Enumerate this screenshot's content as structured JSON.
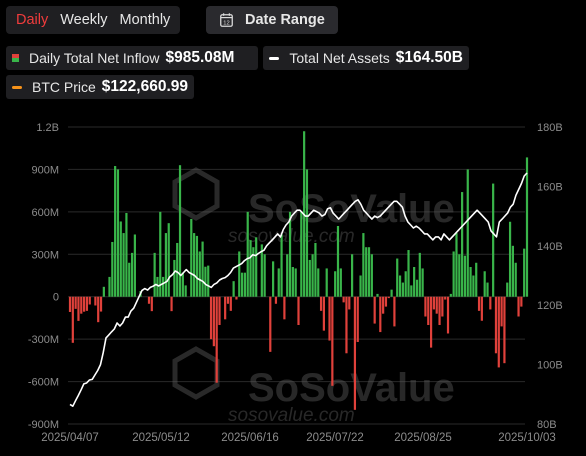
{
  "toolbar": {
    "tabs": [
      {
        "label": "Daily",
        "active": true
      },
      {
        "label": "Weekly",
        "active": false
      },
      {
        "label": "Monthly",
        "active": false
      }
    ],
    "date_range_label": "Date Range",
    "calendar_icon_text": "12"
  },
  "legend": {
    "inflow": {
      "label": "Daily Total Net Inflow",
      "value": "$985.08M"
    },
    "assets": {
      "label": "Total Net Assets",
      "value": "$164.50B"
    },
    "btc": {
      "label": "BTC Price",
      "value": "$122,660.99"
    }
  },
  "watermark": {
    "brand": "SoSoValue",
    "url": "sosovalue.com"
  },
  "colors": {
    "active_tab": "#f03c3c",
    "inflow_positive": "#39b54a",
    "inflow_negative": "#e0413b",
    "assets_line": "#ffffff",
    "btc_line": "#f7931a",
    "grid": "#2a2a2a",
    "axis_text": "#8c8c8c"
  },
  "chart_data": {
    "type": "bar",
    "x_tick_labels": [
      "2025/04/07",
      "2025/05/12",
      "2025/06/16",
      "2025/07/22",
      "2025/08/25",
      "2025/10/03"
    ],
    "y_left": {
      "ylim": [
        -900,
        1200
      ],
      "unit": "million USD",
      "tick_labels": [
        "1.2B",
        "900M",
        "600M",
        "300M",
        "0",
        "-300M",
        "-600M",
        "-900M"
      ]
    },
    "y_right": {
      "ylim": [
        80,
        180
      ],
      "unit": "billion USD",
      "tick_labels": [
        "180B",
        "160B",
        "140B",
        "120B",
        "100B",
        "80B"
      ]
    },
    "grid": true,
    "series": [
      {
        "name": "Daily Total Net Inflow",
        "type": "bar",
        "axis": "left",
        "values": [
          -108,
          -326,
          -86,
          -171,
          -120,
          -106,
          -100,
          -55,
          0,
          -62,
          -180,
          -105,
          70,
          0,
          140,
          387,
          924,
          900,
          532,
          450,
          592,
          240,
          310,
          440,
          0,
          40,
          0,
          0,
          -50,
          -102,
          310,
          140,
          600,
          140,
          450,
          520,
          -102,
          260,
          380,
          930,
          170,
          80,
          0,
          550,
          450,
          430,
          320,
          390,
          212,
          220,
          -300,
          -350,
          -608,
          -200,
          0,
          -160,
          -50,
          -100,
          110,
          -20,
          320,
          170,
          170,
          600,
          400,
          350,
          420,
          0,
          370,
          300,
          0,
          -390,
          250,
          -50,
          200,
          440,
          -160,
          300,
          600,
          210,
          200,
          -200,
          600,
          1170,
          900,
          260,
          300,
          380,
          200,
          -100,
          -240,
          200,
          -310,
          -630,
          180,
          500,
          200,
          -40,
          -400,
          -90,
          300,
          -800,
          -320,
          150,
          450,
          350,
          350,
          300,
          -190,
          20,
          -250,
          -120,
          -70,
          -10,
          50,
          -210,
          270,
          150,
          100,
          180,
          330,
          80,
          210,
          120,
          310,
          200,
          -140,
          -200,
          -360,
          -90,
          -120,
          -200,
          -140,
          -20,
          -260,
          20,
          320,
          450,
          300,
          740,
          290,
          900,
          210,
          150,
          240,
          -100,
          -170,
          180,
          100,
          -90,
          800,
          -400,
          -500,
          -210,
          -470,
          100,
          530,
          360,
          240,
          -140,
          -70,
          340,
          985
        ]
      },
      {
        "name": "Total Net Assets",
        "type": "line",
        "axis": "right",
        "values": [
          86.6,
          86,
          87.8,
          89.6,
          91.5,
          93.5,
          93.8,
          94.8,
          95,
          96.5,
          98,
          100,
          104,
          109,
          110,
          111,
          112,
          114,
          113,
          114,
          116,
          116,
          118,
          119,
          121,
          123,
          125,
          125.6,
          125.1,
          126,
          126.4,
          127,
          126.5,
          127,
          127.5,
          128,
          129.5,
          130.3,
          131.5,
          131,
          130,
          131,
          132,
          131,
          130.5,
          130,
          129,
          128.5,
          128,
          127,
          126.5,
          126,
          127,
          127.5,
          128.5,
          129,
          129.3,
          130,
          131,
          132.5,
          133,
          133.5,
          134,
          135,
          135.7,
          136,
          137,
          136.7,
          137.4,
          138,
          138.5,
          140,
          141,
          142,
          143,
          144,
          143,
          145.5,
          147,
          148,
          150,
          151,
          152,
          152,
          151,
          150,
          150,
          151,
          152,
          151.5,
          151,
          150,
          150.5,
          152.5,
          152.8,
          151,
          150,
          149,
          150,
          151,
          152,
          153,
          154,
          155,
          155.5,
          154,
          152,
          151,
          150,
          149,
          150,
          149.5,
          150,
          151,
          152,
          153,
          154,
          155,
          155,
          154,
          153,
          150,
          148,
          147,
          146,
          146.6,
          146,
          145,
          144,
          144,
          143,
          142,
          143,
          143,
          142,
          144,
          143,
          142,
          143,
          144,
          145,
          146,
          147,
          148,
          149,
          150,
          151,
          152,
          151,
          150,
          149,
          148,
          145,
          144,
          143,
          148,
          149,
          150,
          151,
          153,
          154,
          157,
          159,
          161,
          163.5,
          164.5
        ]
      },
      {
        "name": "BTC Price",
        "type": "line",
        "axis": "right",
        "values": [
          ""
        ]
      }
    ]
  }
}
